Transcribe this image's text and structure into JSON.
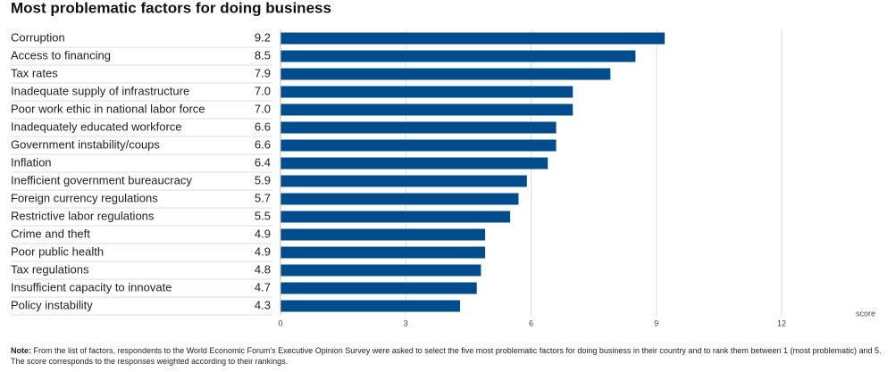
{
  "chart_data": {
    "type": "bar",
    "orientation": "horizontal",
    "title": "Most problematic factors for doing business",
    "categories": [
      "Corruption",
      "Access to financing",
      "Tax rates",
      "Inadequate supply of infrastructure",
      "Poor work ethic in national labor force",
      "Inadequately educated workforce",
      "Government instability/coups",
      "Inflation",
      "Inefficient government bureaucracy",
      "Foreign currency regulations",
      "Restrictive labor regulations",
      "Crime and theft",
      "Poor public health",
      "Tax regulations",
      "Insufficient capacity to innovate",
      "Policy instability"
    ],
    "values": [
      9.2,
      8.5,
      7.9,
      7,
      7,
      6.6,
      6.6,
      6.4,
      5.9,
      5.7,
      5.5,
      4.9,
      4.9,
      4.8,
      4.7,
      4.3
    ],
    "value_labels": [
      "9.2",
      "8.5",
      "7.9",
      "7.0",
      "7.0",
      "6.6",
      "6.6",
      "6.4",
      "5.9",
      "5.7",
      "5.5",
      "4.9",
      "4.9",
      "4.8",
      "4.7",
      "4.3"
    ],
    "color": "#004c8c",
    "xlim": [
      0,
      12
    ],
    "xticks": [
      0,
      3,
      6,
      9,
      12
    ],
    "xlabel": "score",
    "grid": true,
    "note_label": "Note:",
    "note": "From the list of factors, respondents to the World Economic Forum's Executive Opinion Survey were asked to select the five most problematic factors for doing business in their country and to rank them between 1 (most problematic) and 5. The score corresponds to the responses weighted according to their rankings."
  }
}
